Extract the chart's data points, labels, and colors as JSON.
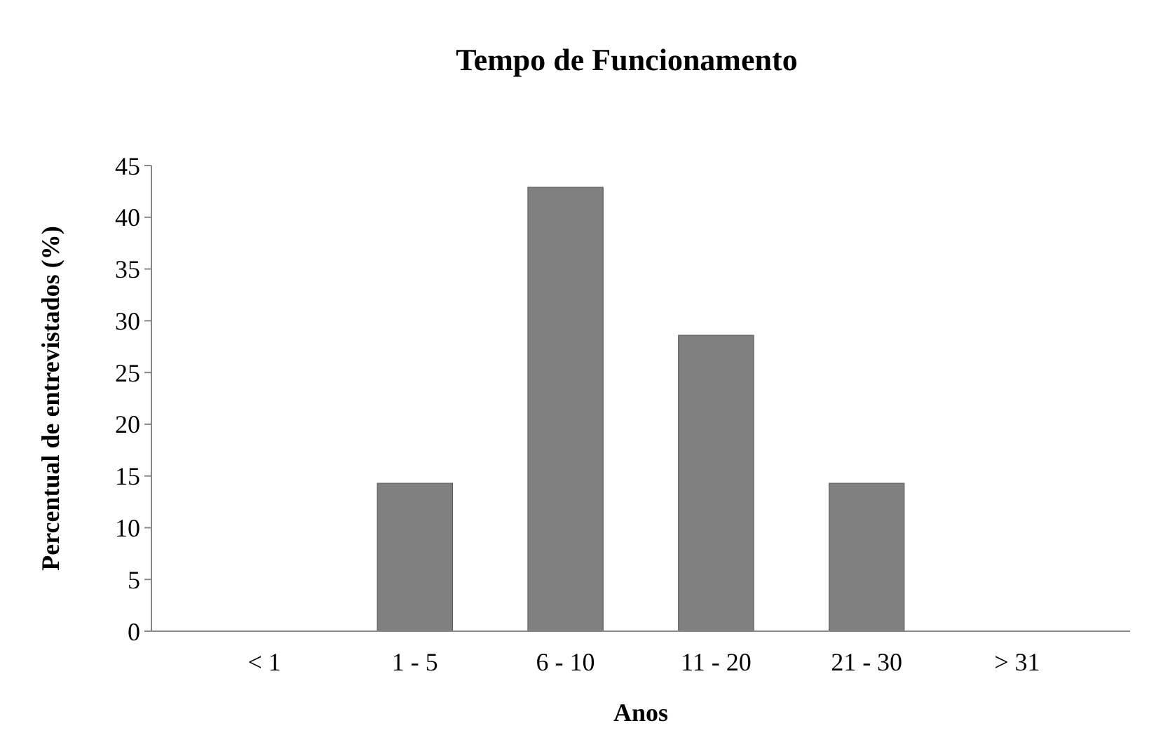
{
  "chart_data": {
    "type": "bar",
    "title": "Tempo de Funcionamento",
    "xlabel": "Anos",
    "ylabel": "Percentual de entrevistados (%)",
    "categories": [
      "< 1",
      "1 - 5",
      "6 - 10",
      "11 - 20",
      "21 - 30",
      "> 31"
    ],
    "values": [
      0,
      14.3,
      42.9,
      28.6,
      14.3,
      0
    ],
    "color": "#808080",
    "ylim": [
      0,
      45
    ],
    "yticks": [
      0,
      5,
      10,
      15,
      20,
      25,
      30,
      35,
      40,
      45
    ]
  }
}
